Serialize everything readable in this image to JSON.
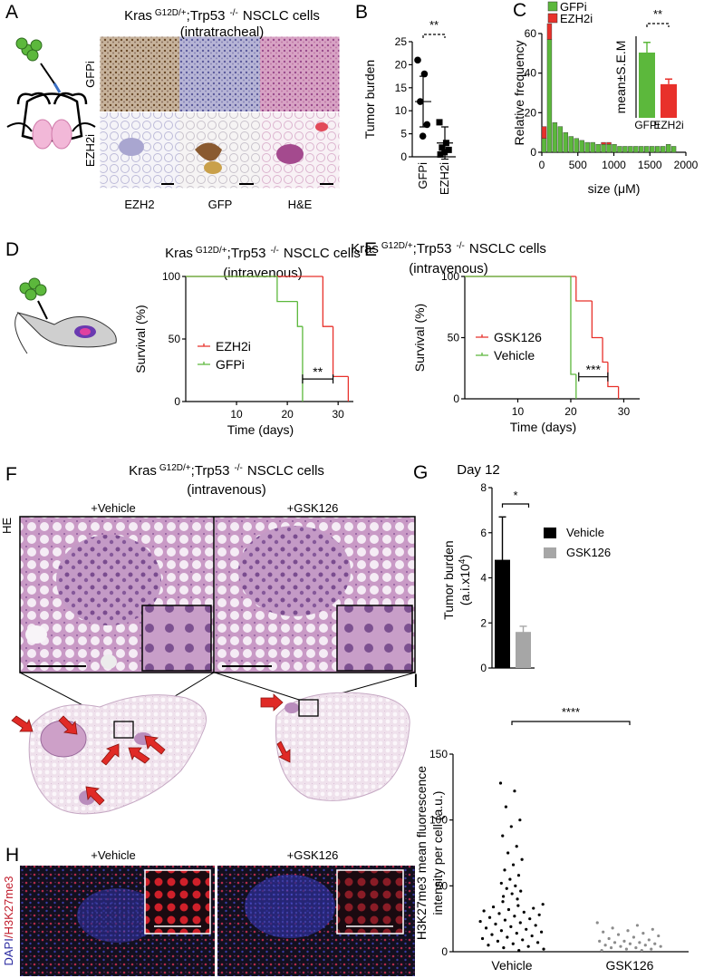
{
  "letters": [
    "A",
    "B",
    "C",
    "D",
    "E",
    "F",
    "G",
    "H",
    "I"
  ],
  "panel_a": {
    "heading": {
      "gene1": "Kras",
      "sup1": "G12D/+",
      "gene2": ";Trp53",
      "sup2": "-/-",
      "cells": "NSCLC cells",
      "route": "(intratracheal)"
    },
    "rows": [
      "GFPi",
      "EZH2i"
    ],
    "columns": [
      "EZH2",
      "GFP",
      "H&E"
    ]
  },
  "panel_f": {
    "heading": {
      "gene1": "Kras",
      "sup1": "G12D/+",
      "gene2": ";Trp53",
      "sup2": "-/-",
      "cells": "NSCLC cells",
      "route": "(intravenous)"
    },
    "conditions": [
      "+Vehicle",
      "+GSK126"
    ],
    "stain": "HE"
  },
  "panel_h": {
    "conditions": [
      "+Vehicle",
      "+GSK126"
    ],
    "stain": [
      "DAPI",
      "/H3K27me3"
    ]
  },
  "chart_data": [
    {
      "type": "dotplot",
      "ylabel": "Tumor burden",
      "ylim": [
        0,
        25
      ],
      "yticks": [
        0,
        5,
        10,
        15,
        20,
        25
      ],
      "annotation": "**",
      "groups": [
        {
          "name": "GFPi",
          "marker": "circle",
          "color": "#000000",
          "values": [
            21,
            18,
            12,
            7,
            4.5
          ],
          "mean": 12,
          "sd": 5.5
        },
        {
          "name": "EZH2i",
          "marker": "square",
          "color": "#000000",
          "values": [
            7.5,
            3,
            2,
            1.5,
            1,
            0.5
          ],
          "mean": 3,
          "sd": 3.5
        }
      ]
    },
    {
      "type": "histogram",
      "xlabel": "size (μM)",
      "ylabel": "Relative frequency",
      "bins": [
        0,
        75,
        150,
        225,
        300,
        375,
        450,
        525,
        600,
        675,
        750,
        825,
        900,
        975,
        1050,
        1125,
        1200,
        1275,
        1350,
        1425,
        1500,
        1575,
        1650,
        1725,
        1800,
        1875
      ],
      "xlim": [
        0,
        2000
      ],
      "xticks": [
        0,
        500,
        1000,
        1500,
        2000
      ],
      "ylim": [
        0,
        60
      ],
      "yticks": [
        0,
        20,
        40,
        60
      ],
      "legend": "top-left",
      "series": [
        {
          "name": "GFPi",
          "color": "#5cb83c",
          "values": [
            7,
            57,
            15,
            13,
            10,
            8,
            7,
            6,
            5,
            5,
            4,
            4,
            4,
            4,
            3,
            3,
            3,
            3,
            3,
            3,
            3,
            3,
            3,
            4,
            3
          ]
        },
        {
          "name": "EZH2i",
          "color": "#e8312b",
          "values": [
            6,
            8,
            0,
            0,
            0,
            0,
            0,
            0,
            0,
            0,
            0,
            1,
            1,
            0,
            0,
            0,
            0,
            0,
            0,
            0,
            0,
            0,
            0,
            0,
            0
          ]
        }
      ]
    },
    {
      "type": "bar",
      "ylabel": "mean±S.E.M",
      "annotation": "**",
      "ylim": [
        0,
        400
      ],
      "categories": [
        "GFPi",
        "EZH2i"
      ],
      "values": [
        320,
        165
      ],
      "errors": [
        50,
        25
      ],
      "colors": [
        "#5cb83c",
        "#e8312b"
      ]
    },
    {
      "type": "survival",
      "title": {
        "gene1": "Kras",
        "sup1": "G12D/+",
        "gene2": ";Trp53",
        "sup2": "-/-",
        "cells": "NSCLC cells",
        "route": "(intravenous)"
      },
      "xlabel": "Time (days)",
      "ylabel": "Survival (%)",
      "xlim": [
        0,
        33
      ],
      "xticks": [
        10,
        20,
        30
      ],
      "ylim": [
        0,
        100
      ],
      "yticks": [
        0,
        50,
        100
      ],
      "annotation": "**",
      "series": [
        {
          "name": "EZH2i",
          "color": "#e8312b",
          "x": [
            0,
            27,
            29,
            32
          ],
          "values": [
            100,
            60,
            20,
            0
          ]
        },
        {
          "name": "GFPi",
          "color": "#5cb83c",
          "x": [
            0,
            18,
            22,
            23
          ],
          "values": [
            100,
            80,
            60,
            0
          ]
        }
      ]
    },
    {
      "type": "survival",
      "title": {
        "gene1": "Kras",
        "sup1": "G12D/+",
        "gene2": ";Trp53",
        "sup2": "-/-",
        "cells": "NSCLC cells",
        "route": "(intravenous)"
      },
      "xlabel": "Time (days)",
      "ylabel": "Survival (%)",
      "xlim": [
        0,
        33
      ],
      "xticks": [
        10,
        20,
        30
      ],
      "ylim": [
        0,
        100
      ],
      "yticks": [
        0,
        50,
        100
      ],
      "annotation": "***",
      "series": [
        {
          "name": "GSK126",
          "color": "#e8312b",
          "x": [
            0,
            21,
            24,
            26,
            27,
            29
          ],
          "values": [
            100,
            80,
            50,
            30,
            10,
            0
          ]
        },
        {
          "name": "Vehicle",
          "color": "#5cb83c",
          "x": [
            0,
            20,
            21
          ],
          "values": [
            100,
            20,
            0
          ]
        }
      ]
    },
    {
      "type": "bar",
      "title": "Day 12",
      "ylabel": [
        "Tumor burden",
        "(a.i.x10",
        "4",
        ")"
      ],
      "annotation": "*",
      "ylim": [
        0,
        8
      ],
      "yticks": [
        0,
        2,
        4,
        6,
        8
      ],
      "categories": [
        "Vehicle",
        "GSK126"
      ],
      "values": [
        4.8,
        1.6
      ],
      "errors": [
        1.9,
        0.25
      ],
      "colors": [
        "#000000",
        "#a6a6a6"
      ]
    },
    {
      "type": "dotplot",
      "ylabel": [
        "H3K27me3 mean fluorescence",
        "intensity per cell (a.u.)"
      ],
      "ylim": [
        0,
        150
      ],
      "yticks": [
        0,
        50,
        100,
        150
      ],
      "annotation": "****",
      "groups": [
        {
          "name": "Vehicle",
          "marker": "circle",
          "color": "#000000",
          "values": [
            128,
            122,
            110,
            100,
            95,
            88,
            80,
            75,
            70,
            66,
            62,
            58,
            55,
            52,
            50,
            48,
            46,
            44,
            42,
            40,
            38,
            36,
            35,
            34,
            33,
            32,
            31,
            30,
            29,
            28,
            27,
            26,
            25,
            24,
            23,
            22,
            21,
            20,
            19,
            18,
            17,
            16,
            15,
            14,
            13,
            12,
            11,
            10,
            9,
            8,
            7,
            6,
            5,
            4,
            3,
            2,
            1
          ]
        },
        {
          "name": "GSK126",
          "marker": "circle",
          "color": "#8c8c8c",
          "values": [
            22,
            20,
            18,
            17,
            16,
            15,
            14,
            13,
            12,
            11,
            10,
            9,
            8,
            8,
            7,
            7,
            6,
            6,
            5,
            5,
            4,
            4,
            3,
            3,
            2,
            2,
            1,
            1
          ]
        }
      ]
    }
  ]
}
